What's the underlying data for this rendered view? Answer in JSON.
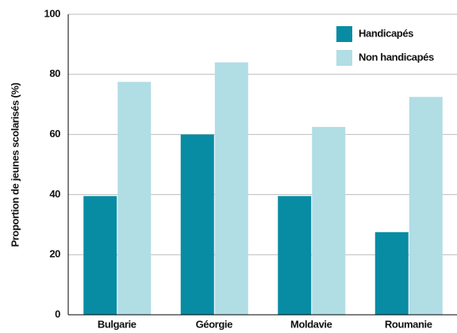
{
  "chart_data": {
    "type": "bar",
    "y_label": "Proportion de jeunes scolarisés (%)",
    "categories": [
      "Bulgarie",
      "Géorgie",
      "Moldavie",
      "Roumanie"
    ],
    "series": [
      {
        "name": "Handicapés",
        "color": "#088ca4",
        "values": [
          39.5,
          60,
          39.5,
          27.5
        ]
      },
      {
        "name": "Non handicapés",
        "color": "#b1dde5",
        "values": [
          77.5,
          84,
          62.5,
          72.5
        ]
      }
    ],
    "ylim": [
      0,
      100
    ],
    "yticks": [
      0,
      20,
      40,
      60,
      80,
      100
    ],
    "grid": true,
    "legend": "top-right"
  }
}
